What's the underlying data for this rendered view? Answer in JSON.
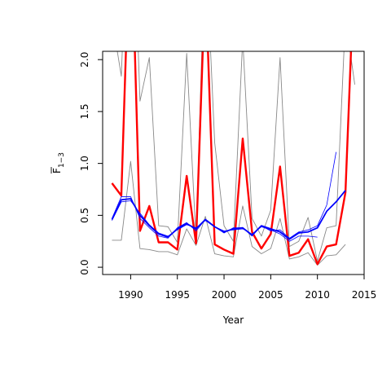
{
  "chart_data": {
    "type": "line",
    "xlabel": "Year",
    "ylabel_main": "F",
    "ylabel_sub": "1−3",
    "xlim": [
      1987.0,
      2015.0
    ],
    "ylim": [
      -0.07,
      2.08
    ],
    "x_ticks": [
      1990,
      1995,
      2000,
      2005,
      2010,
      2015
    ],
    "y_ticks": [
      0.0,
      0.5,
      1.0,
      1.5,
      2.0
    ],
    "y_tick_labels": [
      "0.0",
      "0.5",
      "1.0",
      "1.5",
      "2.0"
    ],
    "grid": false,
    "colors": {
      "series_red": "#ff0000",
      "series_blue_main": "#0000ff",
      "series_blue_thin": "#0000ff",
      "series_grey": "#888888"
    },
    "series": [
      {
        "style": "grey",
        "x": [
          1988,
          1989,
          1990,
          1991,
          1992,
          1993,
          1994,
          1995,
          1996,
          1997,
          1998,
          1999,
          2000,
          2001,
          2002,
          2003,
          2004,
          2005,
          2006,
          2007,
          2008,
          2009,
          2010,
          2011,
          2012,
          2013,
          2014
        ],
        "y": [
          2.4,
          1.84,
          4.2,
          1.6,
          2.02,
          0.4,
          0.39,
          0.24,
          2.06,
          0.26,
          3.2,
          1.2,
          0.4,
          0.25,
          2.2,
          0.47,
          0.3,
          0.55,
          2.02,
          0.2,
          0.25,
          0.48,
          0.06,
          0.38,
          0.4,
          2.4,
          1.76
        ]
      },
      {
        "style": "grey",
        "x": [
          1988,
          1989,
          1990,
          1991,
          1992,
          1993,
          1994,
          1995,
          1996,
          1997,
          1998,
          1999,
          2000,
          2001,
          2002,
          2003,
          2004,
          2005,
          2006,
          2007,
          2008,
          2009,
          2010,
          2011,
          2012,
          2013
        ],
        "y": [
          0.26,
          0.26,
          1.02,
          0.18,
          0.17,
          0.15,
          0.15,
          0.12,
          0.37,
          0.21,
          0.49,
          0.13,
          0.11,
          0.1,
          0.59,
          0.2,
          0.13,
          0.18,
          0.47,
          0.08,
          0.1,
          0.14,
          0.02,
          0.11,
          0.12,
          0.22
        ]
      },
      {
        "style": "red",
        "x": [
          1988,
          1989,
          1990,
          1991,
          1992,
          1993,
          1994,
          1995,
          1996,
          1997,
          1998,
          1999,
          2000,
          2001,
          2002,
          2003,
          2004,
          2005,
          2006,
          2007,
          2008,
          2009,
          2010,
          2011,
          2012,
          2013,
          2014
        ],
        "y": [
          0.81,
          0.69,
          3.5,
          0.35,
          0.59,
          0.24,
          0.24,
          0.17,
          0.88,
          0.23,
          2.8,
          0.22,
          0.17,
          0.13,
          1.24,
          0.34,
          0.18,
          0.32,
          0.97,
          0.11,
          0.14,
          0.27,
          0.03,
          0.2,
          0.22,
          0.72,
          3.0
        ]
      },
      {
        "style": "blue_main",
        "x": [
          1988,
          1989,
          1990,
          1991,
          1992,
          1993,
          1994,
          1995,
          1996,
          1997,
          1998,
          1999,
          2000,
          2001,
          2002,
          2003,
          2004,
          2005,
          2006,
          2007,
          2008,
          2009,
          2010,
          2011,
          2012,
          2013
        ],
        "y": [
          0.46,
          0.65,
          0.66,
          0.5,
          0.4,
          0.32,
          0.29,
          0.37,
          0.42,
          0.37,
          0.46,
          0.39,
          0.34,
          0.37,
          0.38,
          0.31,
          0.4,
          0.37,
          0.34,
          0.27,
          0.33,
          0.34,
          0.38,
          0.54,
          0.63,
          0.74
        ]
      },
      {
        "style": "blue_thin",
        "x": [
          1988,
          1989,
          1990,
          1991,
          1992,
          1993,
          1994,
          1995,
          1996,
          1997,
          1998,
          1999,
          2000,
          2001,
          2002,
          2003,
          2004,
          2005,
          2006,
          2007,
          2008,
          2009,
          2010,
          2011,
          2012
        ],
        "y": [
          0.47,
          0.68,
          0.68,
          0.47,
          0.38,
          0.3,
          0.28,
          0.38,
          0.43,
          0.35,
          0.46,
          0.39,
          0.33,
          0.38,
          0.38,
          0.3,
          0.4,
          0.35,
          0.36,
          0.28,
          0.34,
          0.36,
          0.4,
          0.6,
          1.11
        ]
      },
      {
        "style": "blue_thin",
        "x": [
          1988,
          1989,
          1990,
          1991,
          1992,
          1993,
          1994,
          1995,
          1996,
          1997,
          1998,
          1999,
          2000,
          2001,
          2002,
          2003,
          2004,
          2005,
          2006,
          2007,
          2008,
          2009,
          2010
        ],
        "y": [
          0.45,
          0.63,
          0.64,
          0.52,
          0.41,
          0.33,
          0.3,
          0.36,
          0.41,
          0.38,
          0.45,
          0.39,
          0.35,
          0.36,
          0.37,
          0.32,
          0.39,
          0.36,
          0.32,
          0.25,
          0.3,
          0.3,
          0.29
        ]
      }
    ]
  }
}
